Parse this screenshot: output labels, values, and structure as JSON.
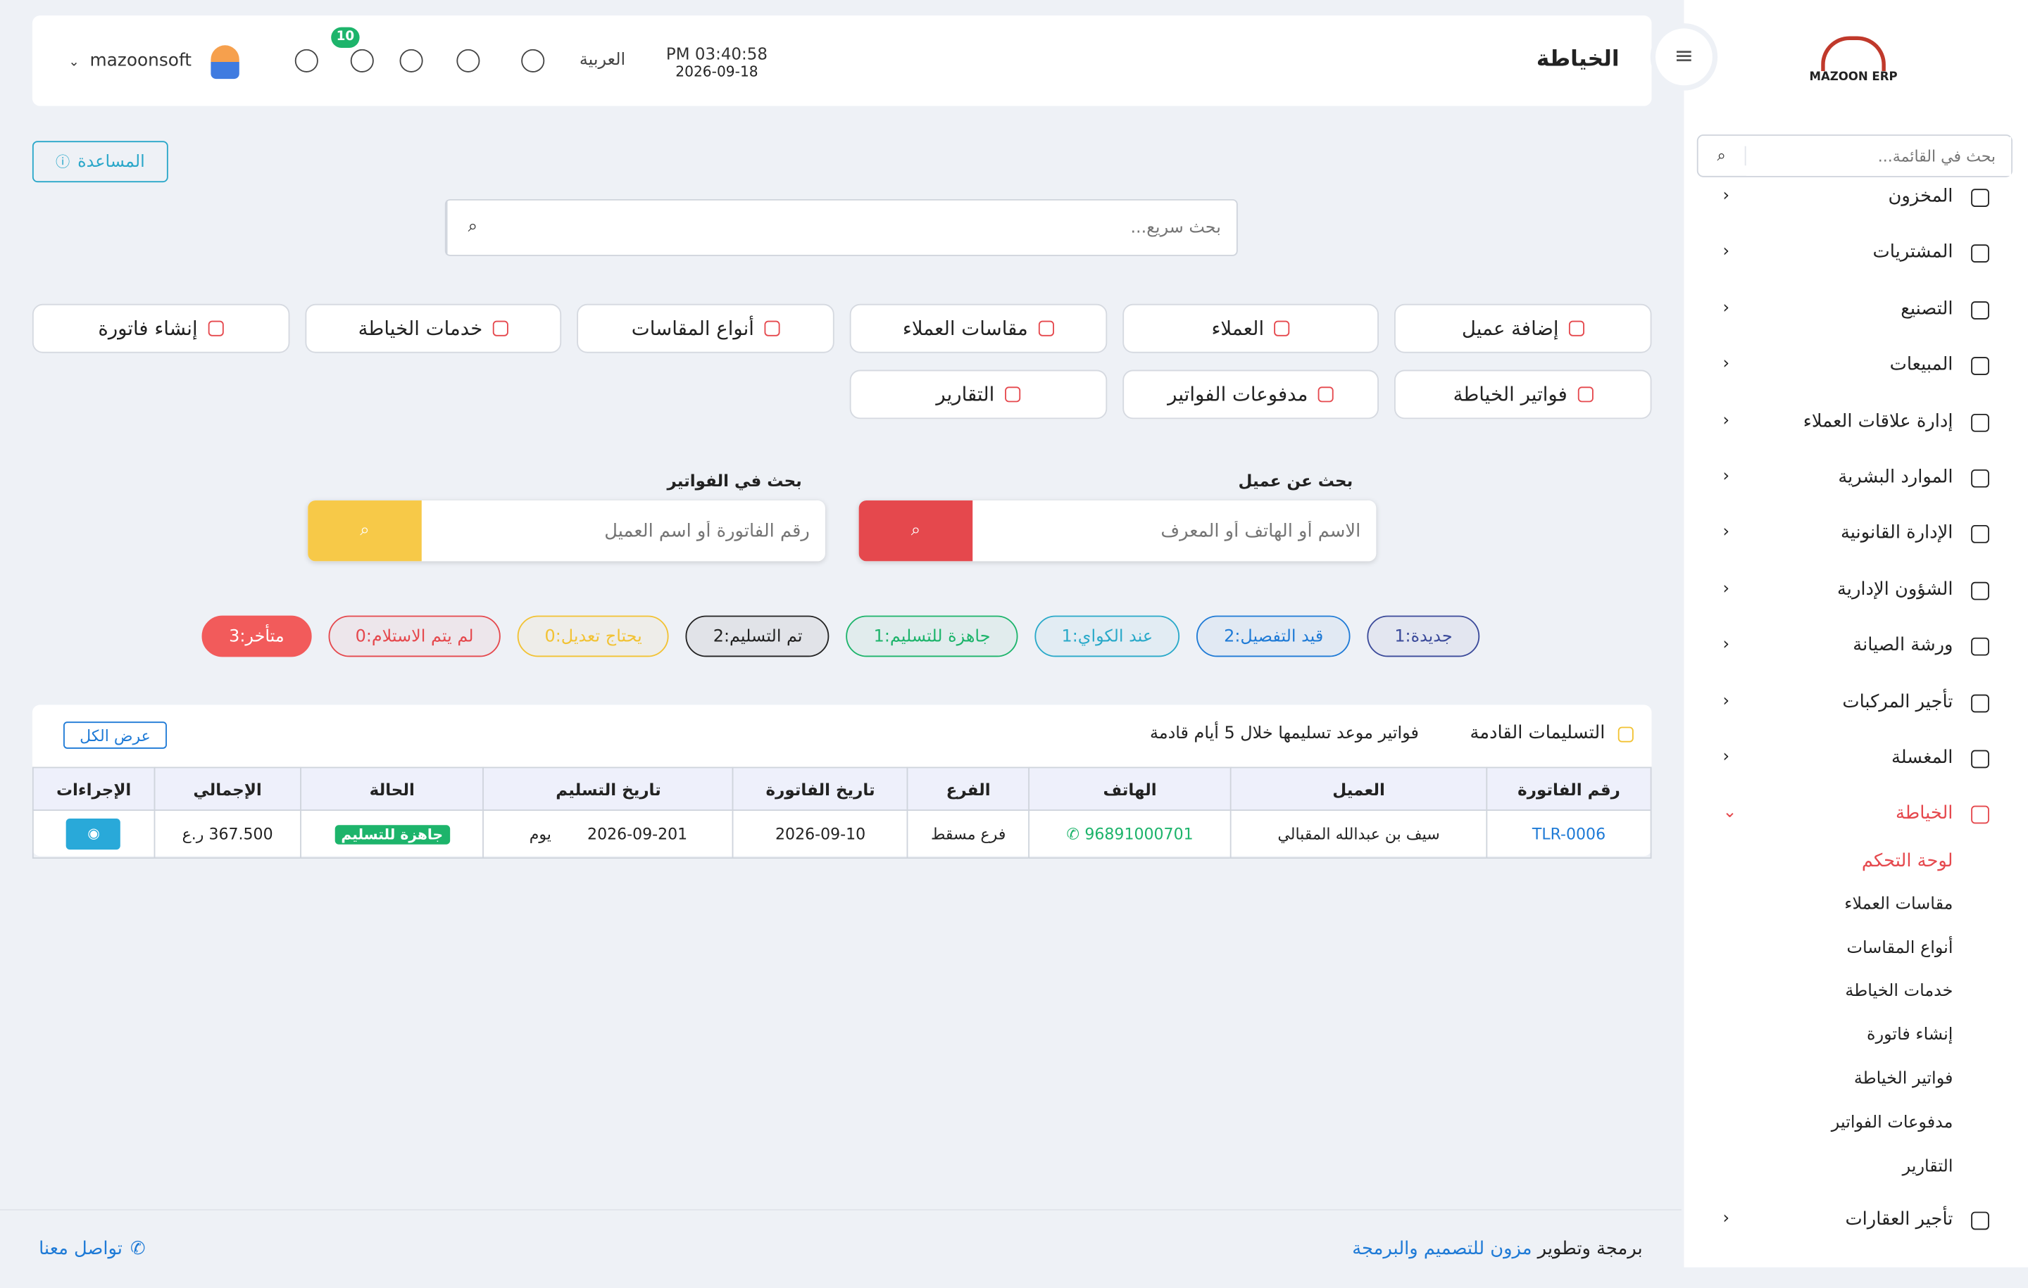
{
  "sidebar": {
    "logo": "MAZOON ERP",
    "search_placeholder": "بحث في القائمة...",
    "menu": [
      "المخزون",
      "المشتريات",
      "التصنيع",
      "المبيعات",
      "إدارة علاقات العملاء",
      "الموارد البشرية",
      "الإدارة القانونية",
      "الشؤون الإدارية",
      "ورشة الصيانة",
      "تأجير المركبات",
      "المغسلة",
      "الخياطة"
    ],
    "submenu": [
      "لوحة التحكم",
      "مقاسات العملاء",
      "أنواع المقاسات",
      "خدمات الخياطة",
      "إنشاء فاتورة",
      "فواتير الخياطة",
      "مدفوعات الفواتير",
      "التقارير"
    ],
    "last_item": "تأجير العقارات"
  },
  "header": {
    "title": "الخياطة",
    "time": "PM 03:40:58",
    "date": "2026-09-18",
    "language": "العربية",
    "notification_count": 10,
    "user": "mazoonsoft"
  },
  "help_button": "المساعدة",
  "quick_search_placeholder": "بحث سريع...",
  "actions": [
    "إضافة عميل",
    "العملاء",
    "مقاسات العملاء",
    "أنواع المقاسات",
    "خدمات الخياطة",
    "إنشاء فاتورة",
    "فواتير الخياطة",
    "مدفوعات الفواتير",
    "التقارير"
  ],
  "customer_search": {
    "label": "بحث عن عميل",
    "placeholder": "الاسم أو الهاتف أو المعرف"
  },
  "invoice_search": {
    "label": "بحث في الفواتير",
    "placeholder": "رقم الفاتورة أو اسم العميل"
  },
  "statuses": [
    {
      "text": "جديدة:1",
      "color": "#3b4a9a"
    },
    {
      "text": "قيد التفصيل:2",
      "color": "#1e7ad6"
    },
    {
      "text": "عند الكواي:1",
      "color": "#29a9c9"
    },
    {
      "text": "جاهزة للتسليم:1",
      "color": "#1db46b"
    },
    {
      "text": "تم التسليم:2",
      "color": "#222222"
    },
    {
      "text": "يحتاج تعديل:0",
      "color": "#f2c233"
    },
    {
      "text": "لم يتم الاستلام:0",
      "color": "#e5484d"
    },
    {
      "text": "متأخر:3",
      "color": "#f25b5b"
    }
  ],
  "deliveries": {
    "title": "التسليمات القادمة",
    "subtitle": "فواتير موعد تسليمها خلال 5 أيام قادمة",
    "view_all": "عرض الكل",
    "columns": [
      "رقم الفاتورة",
      "العميل",
      "الهاتف",
      "الفرع",
      "تاريخ الفاتورة",
      "تاريخ التسليم",
      "الحالة",
      "الإجمالي",
      "الإجراءات"
    ],
    "rows": [
      [
        "TLR-0006",
        "سيف بن عبدالله المقبالي",
        "96891000701",
        "فرع مسقط",
        "2026-09-10",
        "2026-09-20",
        "جاهزة للتسليم",
        "367.500 ر.ع"
      ]
    ],
    "days_left": [
      "1 يوم"
    ]
  },
  "footer": {
    "prefix": "برمجة وتطوير",
    "company": "مزون للتصميم والبرمجة",
    "contact": "تواصل معنا"
  }
}
